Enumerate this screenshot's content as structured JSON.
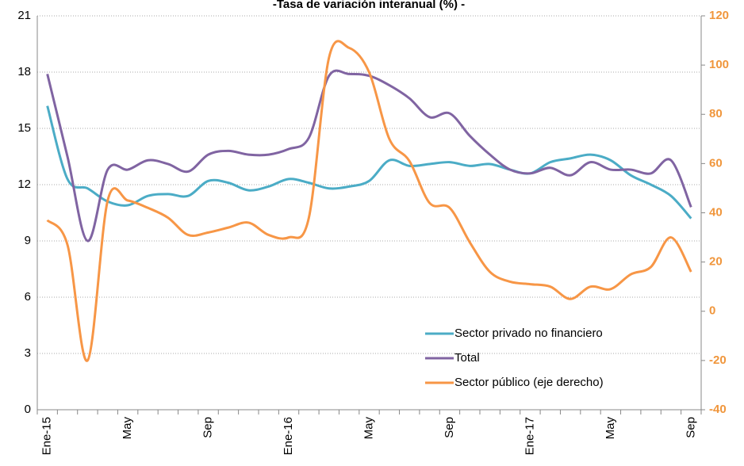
{
  "chart_data": {
    "type": "line",
    "title": "-Tasa de variación interanual (%) -",
    "categories": [
      "Ene-15",
      null,
      null,
      null,
      "May",
      null,
      null,
      null,
      "Sep",
      null,
      null,
      null,
      "Ene-16",
      null,
      null,
      null,
      "May",
      null,
      null,
      null,
      "Sep",
      null,
      null,
      null,
      "Ene-17",
      null,
      null,
      null,
      "May",
      null,
      null,
      null,
      "Sep"
    ],
    "ylim": [
      0,
      21
    ],
    "yticks": [
      0,
      3,
      6,
      9,
      12,
      15,
      18,
      21
    ],
    "y2lim": [
      -40,
      120
    ],
    "y2ticks": [
      -40,
      -20,
      0,
      20,
      40,
      60,
      80,
      100,
      120
    ],
    "grid": true,
    "legend": "lower right",
    "series": [
      {
        "name": "Sector privado no financiero",
        "color": "#4bacc6",
        "values": [
          16.2,
          12.3,
          11.8,
          11.1,
          10.9,
          11.4,
          11.5,
          11.4,
          12.2,
          12.1,
          11.7,
          11.9,
          12.3,
          12.1,
          11.8,
          11.9,
          12.2,
          13.3,
          13.0,
          13.1,
          13.2,
          13.0,
          13.1,
          12.8,
          12.6,
          13.2,
          13.4,
          13.6,
          13.3,
          12.5,
          12.0,
          11.4,
          10.2
        ]
      },
      {
        "name": "Total",
        "color": "#8064a2",
        "values": [
          17.9,
          13.5,
          9.0,
          12.8,
          12.8,
          13.3,
          13.1,
          12.7,
          13.6,
          13.8,
          13.6,
          13.6,
          13.9,
          14.5,
          17.8,
          17.9,
          17.8,
          17.3,
          16.6,
          15.6,
          15.8,
          14.6,
          13.6,
          12.8,
          12.6,
          12.9,
          12.5,
          13.2,
          12.8,
          12.8,
          12.6,
          13.3,
          10.8
        ]
      },
      {
        "name": "Sector público (eje derecho)",
        "color": "#f79646",
        "axis": "y2",
        "values": [
          37,
          27,
          -20,
          45,
          45,
          42,
          38,
          31,
          32,
          34,
          36,
          31,
          30,
          38,
          103,
          107,
          97,
          70,
          61,
          44,
          42,
          28,
          16,
          12,
          11,
          10,
          5,
          10,
          9,
          15,
          18,
          30,
          16
        ]
      }
    ]
  }
}
